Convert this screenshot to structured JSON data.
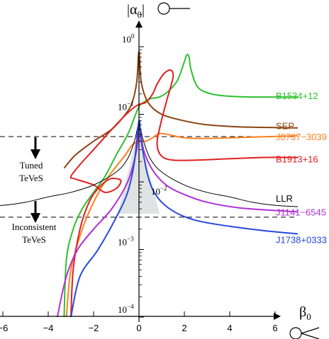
{
  "chart_data": {
    "type": "line",
    "xlabel_symbol": "β",
    "xlabel_sub": "0",
    "ylabel_symbol": "|α",
    "ylabel_sub": "0",
    "ylabel_close": "|",
    "xlim": [
      -7,
      7
    ],
    "ylim_log": [
      0.0001,
      3
    ],
    "x_ticks": [
      {
        "v": -6,
        "label": "−6"
      },
      {
        "v": -4,
        "label": "−4"
      },
      {
        "v": -2,
        "label": "−2"
      },
      {
        "v": 0,
        "label": "0"
      },
      {
        "v": 2,
        "label": "2"
      },
      {
        "v": 4,
        "label": "4"
      },
      {
        "v": 6,
        "label": "6"
      }
    ],
    "y_ticks": [
      {
        "v": 1,
        "base": "10",
        "exp": "0"
      },
      {
        "v": 0.1,
        "base": "10",
        "exp": "−1"
      },
      {
        "v": 0.01,
        "base": "10",
        "exp": "−2"
      },
      {
        "v": 0.001,
        "base": "10",
        "exp": "−3"
      },
      {
        "v": 0.0001,
        "base": "10",
        "exp": "−4"
      }
    ],
    "region_lines": [
      0.0468,
      0.003
    ],
    "annotations": {
      "tuned": [
        "Tuned",
        "TeVeS"
      ],
      "inconsistent": [
        "Inconsistent",
        "TeVeS"
      ]
    },
    "series": [
      {
        "name": "B1534+12",
        "color": "#2ec02e",
        "points": [
          [
            -3.3,
            0.0001
          ],
          [
            -3.2,
            0.0007
          ],
          [
            -2.9,
            0.002
          ],
          [
            -2.5,
            0.004
          ],
          [
            -2,
            0.007
          ],
          [
            -1.5,
            0.012
          ],
          [
            -1,
            0.025
          ],
          [
            -0.5,
            0.05
          ],
          [
            -0.2,
            0.09
          ],
          [
            0,
            0.13
          ],
          [
            0.2,
            0.15
          ],
          [
            0.5,
            0.17
          ],
          [
            0.9,
            0.18
          ],
          [
            1.3,
            0.22
          ],
          [
            1.7,
            0.32
          ],
          [
            2,
            0.6
          ],
          [
            2.1,
            0.75
          ],
          [
            2.2,
            0.72
          ],
          [
            2.3,
            0.45
          ],
          [
            2.6,
            0.25
          ],
          [
            3.2,
            0.2
          ],
          [
            4,
            0.185
          ],
          [
            5,
            0.18
          ],
          [
            6,
            0.18
          ],
          [
            7,
            0.18
          ]
        ]
      },
      {
        "name": "SEP",
        "color": "#8b4513",
        "points": [
          [
            -3.3,
            0.016
          ],
          [
            -2.8,
            0.025
          ],
          [
            -2,
            0.04
          ],
          [
            -1.2,
            0.06
          ],
          [
            -0.6,
            0.1
          ],
          [
            -0.3,
            0.15
          ],
          [
            -0.1,
            0.3
          ],
          [
            0,
            0.85
          ],
          [
            0.1,
            0.3
          ],
          [
            0.4,
            0.15
          ],
          [
            1,
            0.1
          ],
          [
            2,
            0.08
          ],
          [
            3,
            0.07
          ],
          [
            4.5,
            0.065
          ],
          [
            7,
            0.063
          ]
        ]
      },
      {
        "name": "J0737−3039",
        "color": "#ff8020",
        "points": [
          [
            -3.2,
            0.0001
          ],
          [
            -3,
            0.0005
          ],
          [
            -2.5,
            0.002
          ],
          [
            -2,
            0.005
          ],
          [
            -1.5,
            0.01
          ],
          [
            -1,
            0.017
          ],
          [
            -0.6,
            0.025
          ],
          [
            -0.3,
            0.035
          ],
          [
            0,
            0.04
          ],
          [
            0.3,
            0.04
          ],
          [
            0.6,
            0.045
          ],
          [
            0.9,
            0.052
          ],
          [
            1.3,
            0.05
          ],
          [
            2,
            0.045
          ],
          [
            3,
            0.044
          ],
          [
            5,
            0.046
          ],
          [
            7,
            0.048
          ]
        ]
      },
      {
        "name": "B1913+16",
        "color": "#e02020",
        "points": [
          [
            -3,
            0.0001
          ],
          [
            -2.9,
            0.0005
          ],
          [
            -2.6,
            0.002
          ],
          [
            -2.2,
            0.005
          ],
          [
            -1.8,
            0.008
          ],
          [
            -1.3,
            0.011
          ],
          [
            -0.9,
            0.011
          ],
          [
            -0.8,
            0.01
          ],
          [
            -1,
            0.008
          ],
          [
            -1.5,
            0.007
          ],
          [
            -2,
            0.009
          ],
          [
            -2.8,
            0.011
          ],
          [
            -3,
            0.012
          ],
          [
            -2.6,
            0.018
          ],
          [
            -2,
            0.03
          ],
          [
            -1.3,
            0.055
          ],
          [
            -0.7,
            0.09
          ],
          [
            -0.3,
            0.12
          ],
          [
            0,
            0.14
          ],
          [
            0.3,
            0.15
          ],
          [
            0.6,
            0.2
          ],
          [
            0.8,
            0.28
          ],
          [
            1.1,
            0.4
          ],
          [
            1.4,
            0.45
          ],
          [
            1.5,
            0.35
          ],
          [
            1.2,
            0.15
          ],
          [
            0.9,
            0.06
          ],
          [
            0.8,
            0.035
          ],
          [
            1,
            0.024
          ],
          [
            1.5,
            0.021
          ],
          [
            2.5,
            0.021
          ],
          [
            4,
            0.022
          ],
          [
            5.5,
            0.023
          ],
          [
            7,
            0.023
          ]
        ]
      },
      {
        "name": "LLR",
        "color": "#000000",
        "points": [
          [
            -7,
            0.0043
          ],
          [
            -6,
            0.0045
          ],
          [
            -5,
            0.005
          ],
          [
            -4,
            0.006
          ],
          [
            -3,
            0.007
          ],
          [
            -2,
            0.009
          ],
          [
            -1,
            0.014
          ],
          [
            -0.5,
            0.022
          ],
          [
            -0.2,
            0.04
          ],
          [
            0,
            0.07
          ],
          [
            0.2,
            0.04
          ],
          [
            0.5,
            0.022
          ],
          [
            1,
            0.014
          ],
          [
            2,
            0.009
          ],
          [
            3,
            0.007
          ],
          [
            4,
            0.006
          ],
          [
            5,
            0.005
          ],
          [
            6,
            0.0045
          ],
          [
            7,
            0.0043
          ]
        ]
      },
      {
        "name": "J1141−6545",
        "color": "#b030d8",
        "points": [
          [
            -3.6,
            0.0001
          ],
          [
            -3.2,
            0.0004
          ],
          [
            -2.7,
            0.001
          ],
          [
            -2,
            0.002
          ],
          [
            -1.2,
            0.004
          ],
          [
            -0.5,
            0.01
          ],
          [
            -0.1,
            0.03
          ],
          [
            0,
            0.07
          ],
          [
            0.2,
            0.03
          ],
          [
            0.6,
            0.015
          ],
          [
            1.2,
            0.009
          ],
          [
            2,
            0.0065
          ],
          [
            3,
            0.005
          ],
          [
            4.5,
            0.0041
          ],
          [
            7,
            0.0036
          ]
        ]
      },
      {
        "name": "J1738+0333",
        "color": "#2848e0",
        "points": [
          [
            -3,
            0.0001
          ],
          [
            -2.6,
            0.0004
          ],
          [
            -1.8,
            0.001
          ],
          [
            -1,
            0.003
          ],
          [
            -0.5,
            0.007
          ],
          [
            -0.2,
            0.02
          ],
          [
            0,
            0.08
          ],
          [
            0.1,
            0.04
          ],
          [
            0.4,
            0.012
          ],
          [
            0.8,
            0.006
          ],
          [
            1.5,
            0.0037
          ],
          [
            2.5,
            0.0027
          ],
          [
            4,
            0.0022
          ],
          [
            5.5,
            0.0019
          ],
          [
            7,
            0.0017
          ]
        ]
      }
    ]
  }
}
